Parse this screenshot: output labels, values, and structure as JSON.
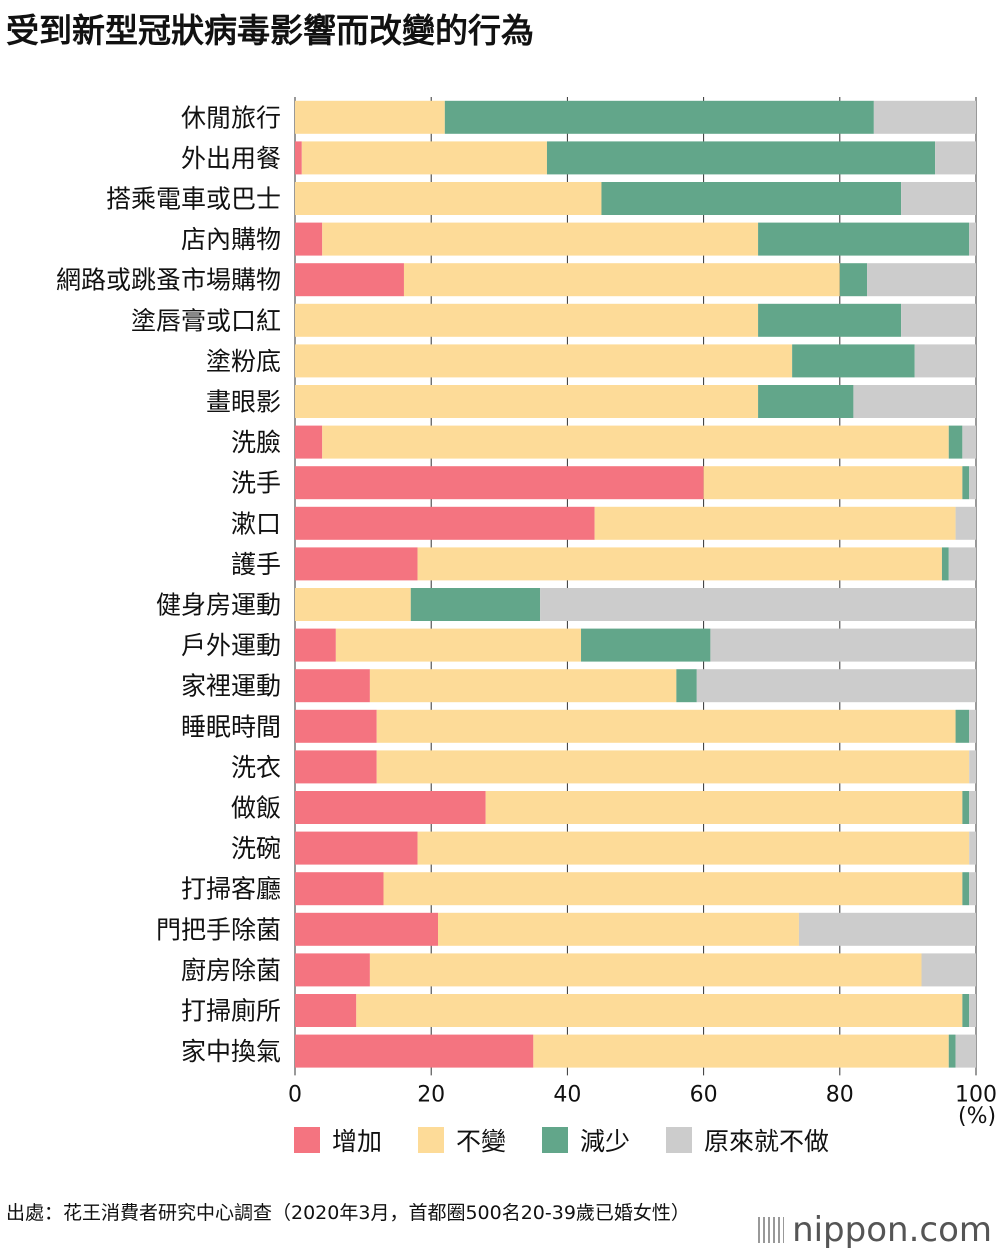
{
  "title": "受到新型冠狀病毒影響而改變的行為",
  "chart_data": {
    "type": "bar",
    "orientation": "horizontal",
    "stacked": true,
    "xlim": [
      0,
      100
    ],
    "xticks": [
      0,
      20,
      40,
      60,
      80,
      100
    ],
    "unit": "(%)",
    "categories": [
      "休閒旅行",
      "外出用餐",
      "搭乘電車或巴士",
      "店內購物",
      "網路或跳蚤市場購物",
      "塗唇膏或口紅",
      "塗粉底",
      "畫眼影",
      "洗臉",
      "洗手",
      "漱口",
      "護手",
      "健身房運動",
      "戶外運動",
      "家裡運動",
      "睡眠時間",
      "洗衣",
      "做飯",
      "洗碗",
      "打掃客廳",
      "門把手除菌",
      "廚房除菌",
      "打掃廁所",
      "家中換氣"
    ],
    "series": [
      {
        "name": "增加",
        "color": "#f47480",
        "values": [
          0,
          1,
          0,
          4,
          16,
          0,
          0,
          0,
          4,
          60,
          44,
          18,
          0,
          6,
          11,
          12,
          12,
          28,
          18,
          13,
          21,
          11,
          9,
          35
        ]
      },
      {
        "name": "不變",
        "color": "#fddb98",
        "values": [
          22,
          36,
          45,
          64,
          64,
          68,
          73,
          68,
          92,
          38,
          53,
          77,
          17,
          36,
          45,
          85,
          87,
          70,
          81,
          85,
          53,
          81,
          89,
          61
        ]
      },
      {
        "name": "減少",
        "color": "#62a68a",
        "values": [
          63,
          57,
          44,
          31,
          4,
          21,
          18,
          14,
          2,
          1,
          0,
          1,
          19,
          19,
          3,
          2,
          0,
          1,
          0,
          1,
          0,
          0,
          1,
          1
        ]
      },
      {
        "name": "原來就不做",
        "color": "#cccccc",
        "values": [
          15,
          6,
          11,
          1,
          16,
          11,
          9,
          18,
          2,
          1,
          3,
          4,
          64,
          39,
          41,
          1,
          1,
          1,
          1,
          1,
          26,
          8,
          1,
          3
        ]
      }
    ],
    "legend_position": "bottom"
  },
  "source": "出處：花王消費者研究中心調查（2020年3月，首都圈500名20-39歲已婚女性）",
  "brand": "nippon.com"
}
